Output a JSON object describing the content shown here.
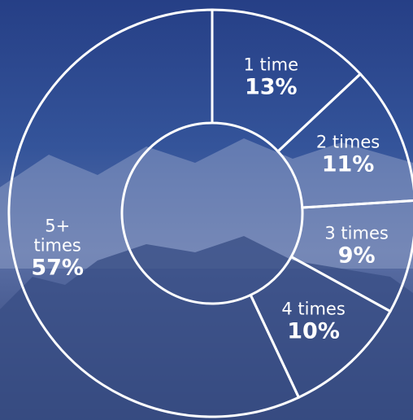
{
  "chart_data": {
    "type": "donut",
    "categories": [
      "1 time",
      "2 times",
      "3 times",
      "4 times",
      "5+ times"
    ],
    "values": [
      13,
      11,
      9,
      10,
      57
    ],
    "value_labels": [
      "13%",
      "11%",
      "9%",
      "10%",
      "57%"
    ],
    "color": "#ffffff"
  }
}
